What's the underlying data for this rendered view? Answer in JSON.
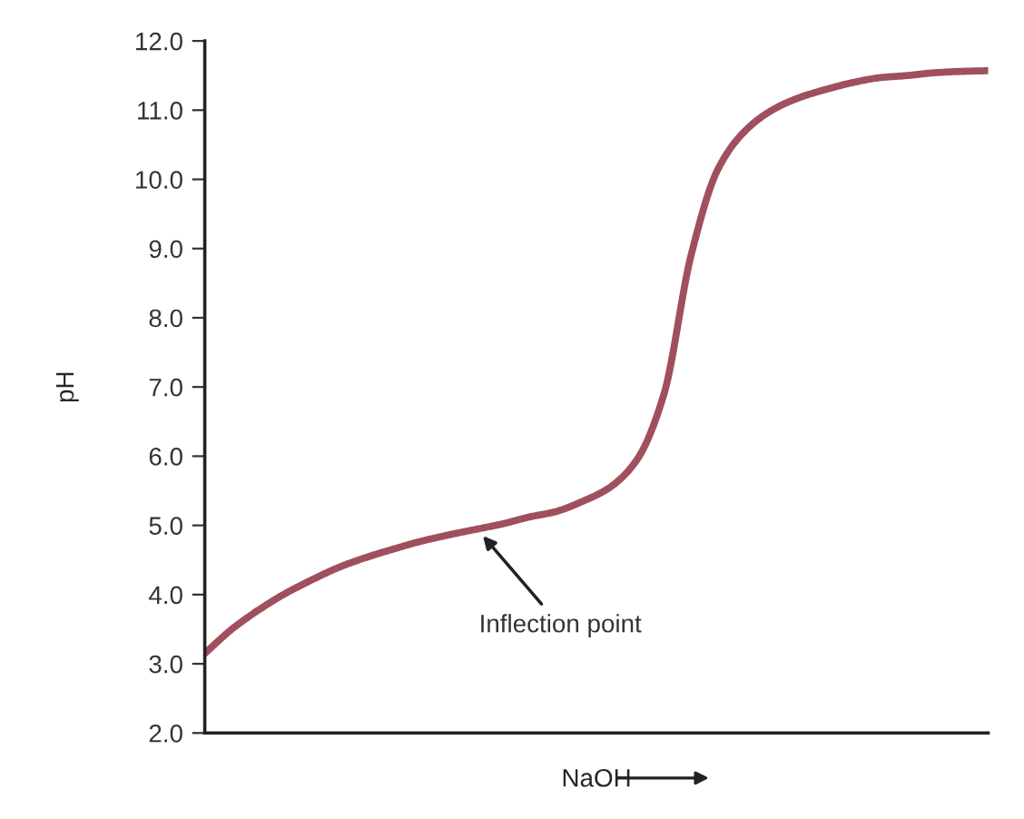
{
  "chart_data": {
    "type": "line",
    "xlabel": "NaOH",
    "ylabel": "pH",
    "categories": [
      null,
      null,
      null,
      null,
      null,
      null,
      null,
      null,
      null,
      null,
      null,
      null,
      null,
      null,
      null,
      null,
      null,
      null,
      null,
      null,
      null,
      null,
      null,
      null,
      null,
      null,
      null,
      null,
      null,
      null
    ],
    "series": [
      {
        "color": "#a0505c",
        "values": [
          3.15,
          3.5,
          3.78,
          4.02,
          4.22,
          4.4,
          4.54,
          4.66,
          4.77,
          4.86,
          4.94,
          5.02,
          5.12,
          5.2,
          5.35,
          5.55,
          5.95,
          6.9,
          8.9,
          10.15,
          10.7,
          11.0,
          11.18,
          11.3,
          11.4,
          11.47,
          11.5,
          11.54,
          11.56,
          11.57
        ]
      }
    ],
    "ylim": [
      2,
      12
    ],
    "yticks": [
      {
        "value": 2,
        "label": "2.0"
      },
      {
        "value": 3,
        "label": "3.0"
      },
      {
        "value": 4,
        "label": "4.0"
      },
      {
        "value": 5,
        "label": "5.0"
      },
      {
        "value": 6,
        "label": "6.0"
      },
      {
        "value": 7,
        "label": "7.0"
      },
      {
        "value": 8,
        "label": "8.0"
      },
      {
        "value": 9,
        "label": "9.0"
      },
      {
        "value": 10,
        "label": "10.0"
      },
      {
        "value": 11,
        "label": "11.0"
      },
      {
        "value": 12,
        "label": "12.0"
      }
    ],
    "tick_labels": "y",
    "marker": "none",
    "line_style": "solid",
    "annotations": [
      "Inflection point"
    ]
  }
}
